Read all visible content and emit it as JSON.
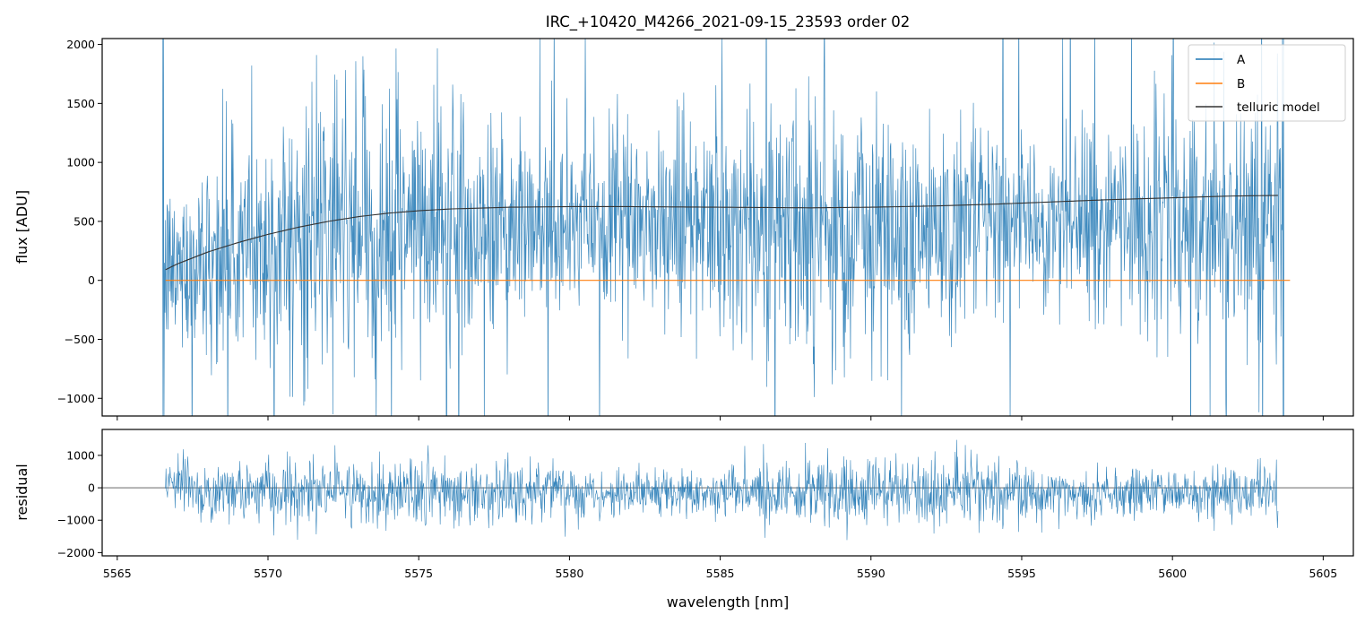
{
  "chart_data": [
    {
      "type": "line",
      "title": "IRC_+10420_M4266_2021-09-15_23593  order 02",
      "ylabel": "flux [ADU]",
      "ylim": [
        -1150,
        2050
      ],
      "yticks": [
        -1000,
        -500,
        0,
        500,
        1000,
        1500,
        2000
      ],
      "ytick_labels": [
        "−1000",
        "−500",
        "0",
        "500",
        "1000",
        "1500",
        "2000"
      ],
      "xlim": [
        5564.5,
        5606
      ],
      "xticks": [
        5565,
        5570,
        5575,
        5580,
        5585,
        5590,
        5595,
        5600,
        5605
      ],
      "legend_position": "upper right",
      "series": [
        {
          "name": "A",
          "color": "#1f77b4",
          "style": "noisy spectrum",
          "x_range": [
            5566.5,
            5603.7
          ],
          "approx_mean": 450,
          "approx_std": 520,
          "points": 2200
        },
        {
          "name": "B",
          "color": "#ff7f0e",
          "x": [
            5566.6,
            5603.9
          ],
          "y": [
            0,
            0
          ]
        },
        {
          "name": "telluric model",
          "color": "#333333",
          "x": [
            5566.6,
            5567.0,
            5568.0,
            5569.0,
            5570.0,
            5571.0,
            5572.0,
            5573.0,
            5574.0,
            5575.0,
            5576.0,
            5578.0,
            5580.0,
            5582.0,
            5585.0,
            5588.0,
            5590.0,
            5592.0,
            5594.0,
            5596.0,
            5598.0,
            5600.0,
            5602.0,
            5603.5
          ],
          "y": [
            90,
            140,
            240,
            320,
            390,
            450,
            500,
            540,
            570,
            590,
            605,
            620,
            625,
            625,
            620,
            615,
            620,
            630,
            645,
            665,
            685,
            700,
            715,
            720
          ]
        }
      ]
    },
    {
      "type": "line",
      "xlabel": "wavelength [nm]",
      "ylabel": "residual",
      "ylim": [
        -2100,
        1800
      ],
      "yticks": [
        -2000,
        -1000,
        0,
        1000
      ],
      "ytick_labels": [
        "−2000",
        "−1000",
        "0",
        "1000"
      ],
      "xlim": [
        5564.5,
        5606
      ],
      "xticks": [
        5565,
        5570,
        5575,
        5580,
        5585,
        5590,
        5595,
        5600,
        5605
      ],
      "xtick_labels": [
        "5565",
        "5570",
        "5575",
        "5580",
        "5585",
        "5590",
        "5595",
        "5600",
        "5605"
      ],
      "zero_line": true,
      "series": [
        {
          "color": "#1f77b4",
          "style": "noisy residual",
          "x_range": [
            5566.6,
            5603.5
          ],
          "approx_mean": -150,
          "approx_std": 480,
          "points": 2200
        }
      ]
    }
  ]
}
